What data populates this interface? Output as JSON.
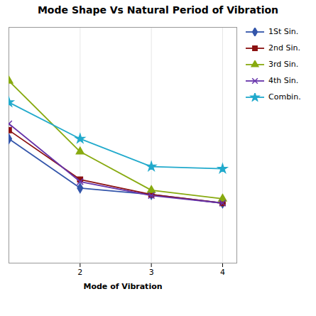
{
  "chart_data": {
    "type": "line",
    "title": "Mode Shape Vs Natural Period of Vibration",
    "xlabel": "Mode of Vibration",
    "x": [
      1,
      2,
      3,
      4
    ],
    "series": [
      {
        "name": "1St Sin.",
        "color": "#3355aa",
        "marker": "diamond",
        "values": [
          5.8,
          3.5,
          3.2,
          2.8
        ]
      },
      {
        "name": "2nd Sin.",
        "color": "#8b1010",
        "marker": "square",
        "values": [
          6.2,
          3.9,
          3.2,
          2.8
        ]
      },
      {
        "name": "3rd Sin.",
        "color": "#88aa10",
        "marker": "triangle",
        "values": [
          8.5,
          5.2,
          3.4,
          3.0
        ]
      },
      {
        "name": "4th Sin.",
        "color": "#6633aa",
        "marker": "times",
        "values": [
          6.5,
          3.8,
          3.15,
          2.8
        ]
      },
      {
        "name": "Combin.",
        "color": "#22aacc",
        "marker": "star",
        "values": [
          7.5,
          5.8,
          4.5,
          4.4
        ]
      }
    ],
    "xlim": [
      1.0,
      4.2
    ],
    "xticks": [
      2,
      3,
      4
    ],
    "ylim": [
      0,
      11
    ],
    "tick_labels": "x",
    "grid": true,
    "legend": "right"
  }
}
